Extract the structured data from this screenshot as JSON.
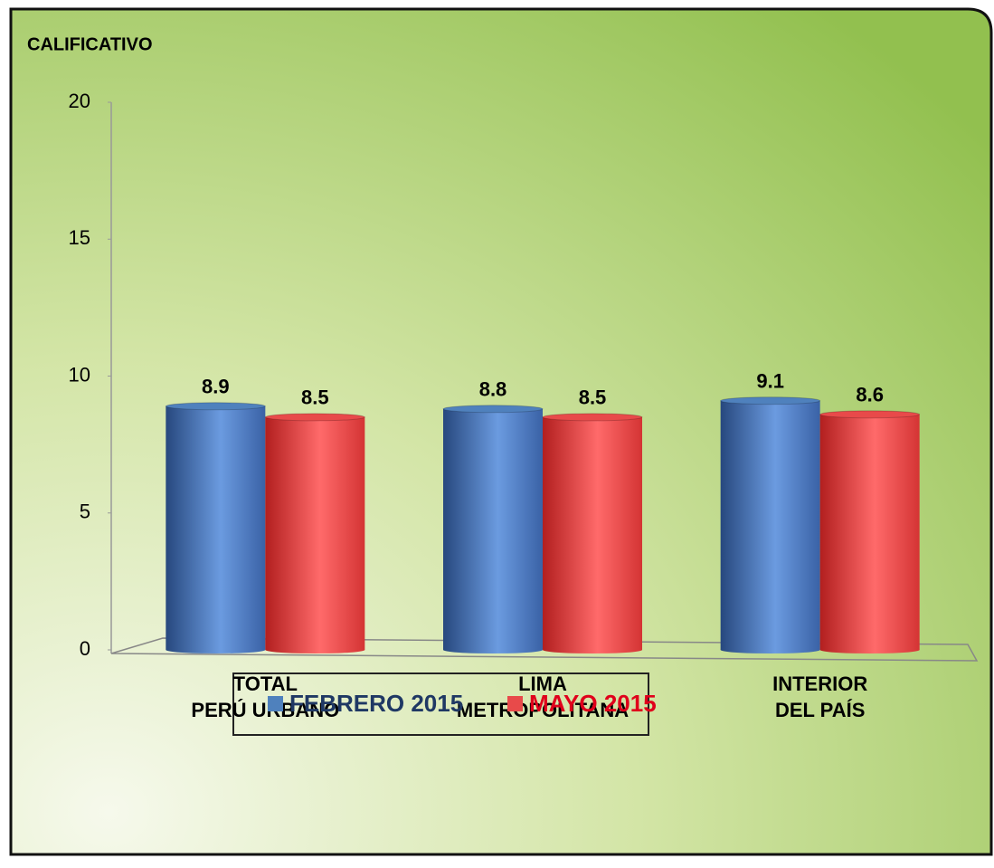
{
  "chart_data": {
    "type": "bar",
    "y_axis_label": "CALIFICATIVO",
    "categories": [
      "TOTAL\nPERÚ URBANO",
      "LIMA\nMETROPOLITANA",
      "INTERIOR\nDEL PAÍS"
    ],
    "series": [
      {
        "name": "FEBRERO 2015",
        "color": "#4f81bd",
        "values": [
          8.9,
          8.8,
          9.1
        ]
      },
      {
        "name": "MAYO 2015",
        "color": "#e84a4a",
        "values": [
          8.5,
          8.5,
          8.6
        ]
      }
    ],
    "ylim": [
      0,
      20
    ],
    "yticks": [
      0,
      5,
      10,
      15,
      20
    ],
    "grid": false,
    "legend": "bottom"
  }
}
